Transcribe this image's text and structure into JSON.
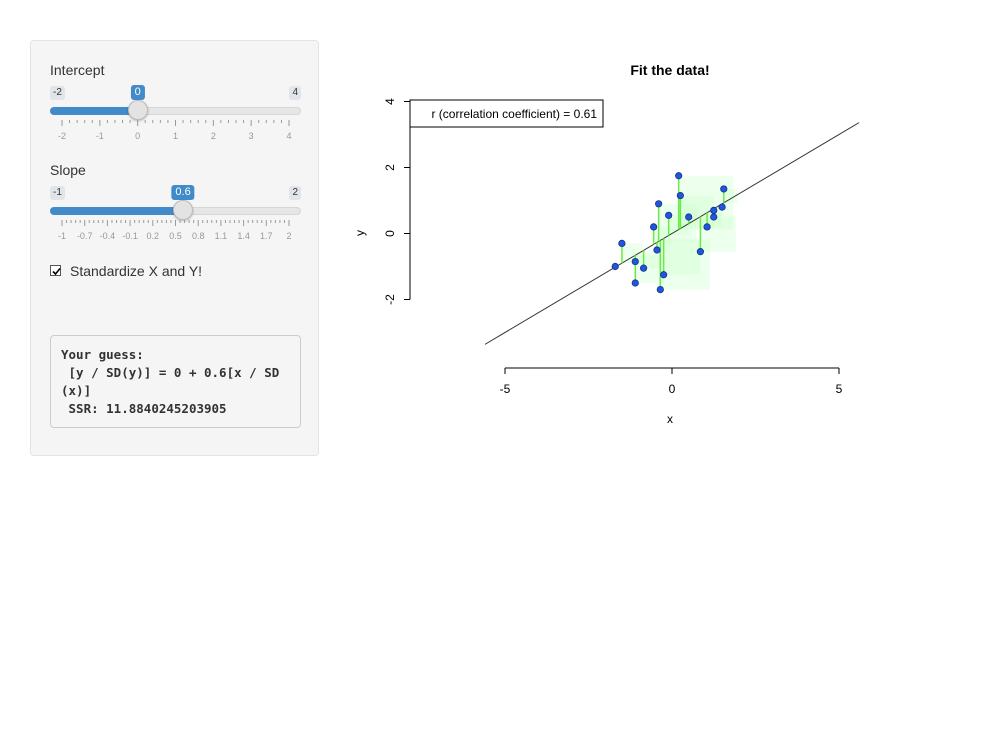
{
  "sidebar": {
    "intercept": {
      "label": "Intercept",
      "min_label": "-2",
      "max_label": "4",
      "value_label": "0",
      "min": -2,
      "max": 4,
      "value": 0,
      "tick_labels": [
        "-2",
        "-1",
        "0",
        "1",
        "2",
        "3",
        "4"
      ]
    },
    "slope": {
      "label": "Slope",
      "min_label": "-1",
      "max_label": "2",
      "value_label": "0.6",
      "min": -1,
      "max": 2,
      "value": 0.6,
      "tick_labels": [
        "-1",
        "-0.7",
        "-0.4",
        "-0.1",
        "0.2",
        "0.5",
        "0.8",
        "1.1",
        "1.4",
        "1.7",
        "2"
      ]
    },
    "standardize": {
      "label": "Standardize X and Y!",
      "checked": true
    },
    "output": {
      "text": "Your guess:\n [y / SD(y)] = 0 + 0.6[x / SD(x)]\n SSR: 11.8840245203905"
    }
  },
  "chart_data": {
    "type": "scatter",
    "title": "Fit the data!",
    "xlabel": "x",
    "ylabel": "y",
    "xlim": [
      -5,
      5
    ],
    "ylim": [
      -2,
      4
    ],
    "x_ticks": [
      "-5",
      "0",
      "5"
    ],
    "y_ticks": [
      "-2",
      "0",
      "2",
      "4"
    ],
    "legend": {
      "text": "r (correlation coefficient) = 0.61",
      "position": "top-left"
    },
    "fit_line": {
      "intercept": 0,
      "slope": 0.6
    },
    "colors": {
      "points": "#2255dd",
      "point_edge": "#123388",
      "residuals": "#66ee44",
      "squares": "#ccffcc",
      "line": "#333333"
    },
    "points": [
      {
        "x": -1.7,
        "y": -1.0
      },
      {
        "x": -1.5,
        "y": -0.3
      },
      {
        "x": -1.1,
        "y": -0.85
      },
      {
        "x": -1.1,
        "y": -1.5
      },
      {
        "x": -0.85,
        "y": -1.05
      },
      {
        "x": -0.55,
        "y": 0.2
      },
      {
        "x": -0.45,
        "y": -0.5
      },
      {
        "x": -0.4,
        "y": 0.9
      },
      {
        "x": -0.35,
        "y": -1.7
      },
      {
        "x": -0.25,
        "y": -1.25
      },
      {
        "x": -0.1,
        "y": 0.55
      },
      {
        "x": 0.2,
        "y": 1.75
      },
      {
        "x": 0.25,
        "y": 1.15
      },
      {
        "x": 0.5,
        "y": 0.5
      },
      {
        "x": 0.85,
        "y": -0.55
      },
      {
        "x": 1.05,
        "y": 0.2
      },
      {
        "x": 1.25,
        "y": 0.5
      },
      {
        "x": 1.25,
        "y": 0.7
      },
      {
        "x": 1.5,
        "y": 0.8
      },
      {
        "x": 1.55,
        "y": 1.35
      }
    ]
  }
}
